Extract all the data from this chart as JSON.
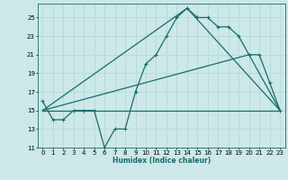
{
  "xlabel": "Humidex (Indice chaleur)",
  "xlim": [
    -0.5,
    23.5
  ],
  "ylim": [
    11,
    26.5
  ],
  "xticks": [
    0,
    1,
    2,
    3,
    4,
    5,
    6,
    7,
    8,
    9,
    10,
    11,
    12,
    13,
    14,
    15,
    16,
    17,
    18,
    19,
    20,
    21,
    22,
    23
  ],
  "yticks": [
    11,
    13,
    15,
    17,
    19,
    21,
    23,
    25
  ],
  "bg_color": "#cce8e8",
  "line_color": "#1a6b6b",
  "grid_color": "#b0d8d8",
  "line1_x": [
    0,
    1,
    2,
    3,
    4,
    5,
    6,
    7,
    8,
    9,
    10,
    11,
    12,
    13,
    14,
    15,
    16,
    17,
    18,
    19,
    20,
    21,
    22,
    23
  ],
  "line1_y": [
    16,
    14,
    14,
    15,
    15,
    15,
    11,
    13,
    13,
    17,
    20,
    21,
    23,
    25,
    26,
    25,
    25,
    24,
    24,
    23,
    21,
    21,
    18,
    15
  ],
  "line2_x": [
    0,
    14,
    23
  ],
  "line2_y": [
    15,
    26,
    15
  ],
  "line3_x": [
    0,
    20,
    23
  ],
  "line3_y": [
    15,
    21,
    15
  ],
  "line4_x": [
    0,
    23
  ],
  "line4_y": [
    15,
    15
  ]
}
